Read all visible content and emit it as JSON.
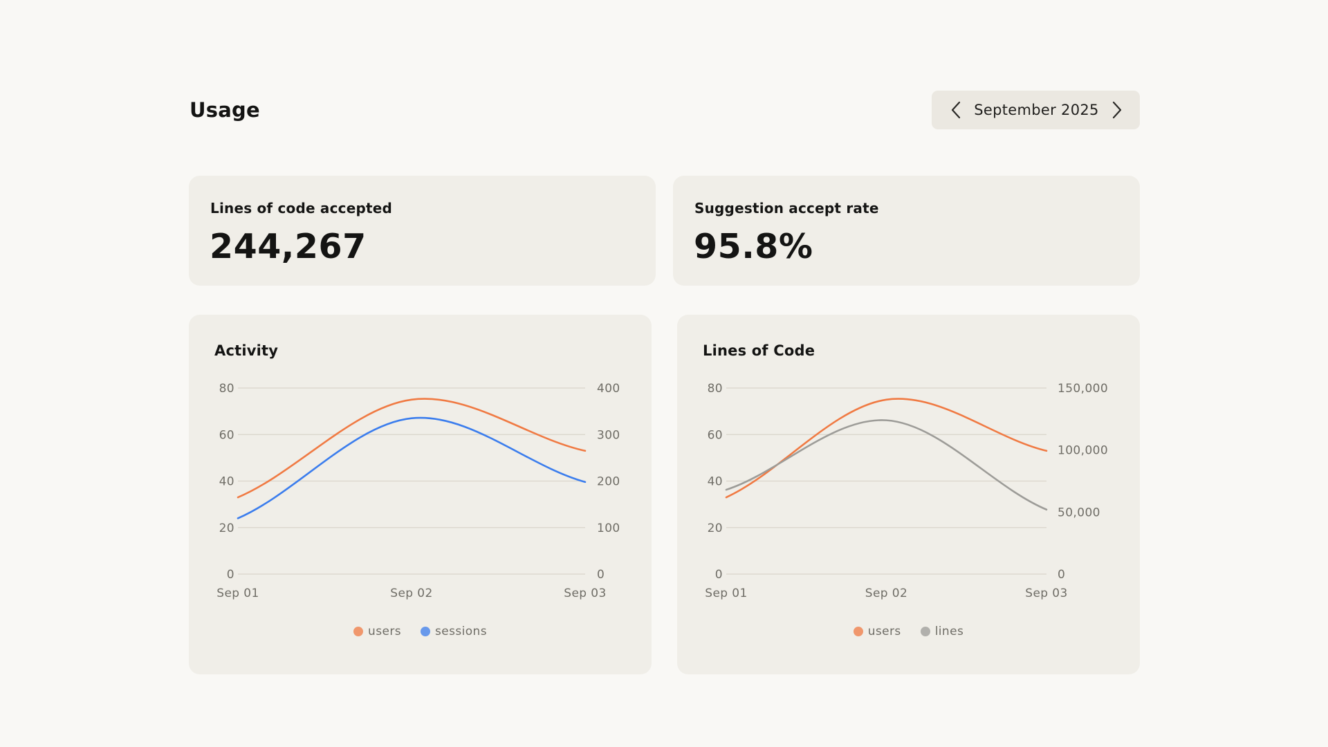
{
  "header": {
    "title": "Usage",
    "month": "September 2025",
    "prev_icon": "chevron-left-icon",
    "next_icon": "chevron-right-icon"
  },
  "stats": [
    {
      "label": "Lines of code accepted",
      "value": "244,267"
    },
    {
      "label": "Suggestion accept rate",
      "value": "95.8%"
    }
  ],
  "colors": {
    "users": "#f07a43",
    "sessions": "#3b7ded",
    "lines": "#9d9c98",
    "gridline": "#d9d5cb"
  },
  "chart_data": [
    {
      "type": "line",
      "title": "Activity",
      "x": [
        "Sep 01",
        "Sep 02",
        "Sep 03"
      ],
      "y_left": {
        "ticks": [
          "0",
          "20",
          "40",
          "60",
          "80"
        ],
        "range": [
          0,
          80
        ]
      },
      "y_right": {
        "ticks": [
          "0",
          "100",
          "200",
          "300",
          "400"
        ],
        "range": [
          0,
          400
        ]
      },
      "series": [
        {
          "name": "users",
          "axis": "left",
          "values": [
            33,
            75,
            53
          ],
          "color": "#f07a43"
        },
        {
          "name": "sessions",
          "axis": "right",
          "values": [
            120,
            335,
            198
          ],
          "color": "#3b7ded"
        }
      ],
      "grid": true,
      "legend": "bottom-center"
    },
    {
      "type": "line",
      "title": "Lines of Code",
      "x": [
        "Sep 01",
        "Sep 02",
        "Sep 03"
      ],
      "y_left": {
        "ticks": [
          "0",
          "20",
          "40",
          "60",
          "80"
        ],
        "range": [
          0,
          80
        ]
      },
      "y_right": {
        "ticks": [
          "0",
          "50,000",
          "100,000",
          "150,000"
        ],
        "range": [
          0,
          150000
        ]
      },
      "series": [
        {
          "name": "users",
          "axis": "left",
          "values": [
            33,
            75,
            53
          ],
          "color": "#f07a43"
        },
        {
          "name": "lines",
          "axis": "right",
          "values": [
            68000,
            124000,
            52000
          ],
          "color": "#9d9c98"
        }
      ],
      "grid": true,
      "legend": "bottom-center"
    }
  ]
}
